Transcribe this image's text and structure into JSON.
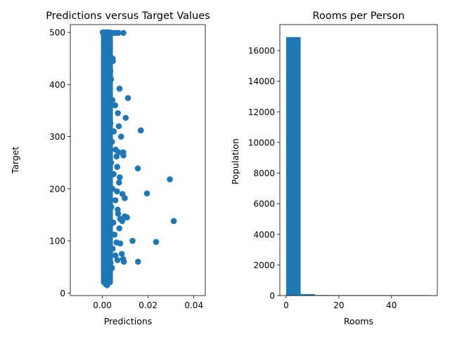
{
  "chart_data": [
    {
      "type": "scatter",
      "title": "Predictions versus Target Values",
      "xlabel": "Predictions",
      "ylabel": "Target",
      "xlim": [
        -0.014,
        0.045
      ],
      "ylim": [
        -5,
        515
      ],
      "xticks": [
        0.0,
        0.02,
        0.04
      ],
      "xtick_labels": [
        "0.00",
        "0.02",
        "0.04"
      ],
      "yticks": [
        0,
        100,
        200,
        300,
        400,
        500
      ],
      "ytick_labels": [
        "0",
        "100",
        "200",
        "300",
        "400",
        "500"
      ],
      "grid": false,
      "color": "#1f77b4",
      "points": [
        {
          "x": 0.0002,
          "y": 500
        },
        {
          "x": 0.0005,
          "y": 500
        },
        {
          "x": 0.001,
          "y": 500
        },
        {
          "x": 0.0015,
          "y": 500
        },
        {
          "x": 0.002,
          "y": 500
        },
        {
          "x": 0.0025,
          "y": 500
        },
        {
          "x": 0.003,
          "y": 500
        },
        {
          "x": 0.0035,
          "y": 499
        },
        {
          "x": 0.004,
          "y": 499
        },
        {
          "x": 0.0045,
          "y": 499
        },
        {
          "x": 0.005,
          "y": 499
        },
        {
          "x": 0.006,
          "y": 499
        },
        {
          "x": 0.007,
          "y": 499
        },
        {
          "x": 0.0092,
          "y": 499
        },
        {
          "x": 0.0012,
          "y": 490
        },
        {
          "x": 0.0022,
          "y": 485
        },
        {
          "x": 0.0008,
          "y": 475
        },
        {
          "x": 0.0018,
          "y": 470
        },
        {
          "x": 0.0028,
          "y": 465
        },
        {
          "x": 0.0013,
          "y": 455
        },
        {
          "x": 0.0045,
          "y": 450
        },
        {
          "x": 0.0046,
          "y": 445
        },
        {
          "x": 0.0024,
          "y": 440
        },
        {
          "x": 0.0016,
          "y": 430
        },
        {
          "x": 0.0035,
          "y": 425
        },
        {
          "x": 0.0011,
          "y": 415
        },
        {
          "x": 0.0038,
          "y": 410
        },
        {
          "x": 0.0021,
          "y": 400
        },
        {
          "x": 0.0075,
          "y": 392
        },
        {
          "x": 0.0014,
          "y": 388
        },
        {
          "x": 0.003,
          "y": 380
        },
        {
          "x": 0.0112,
          "y": 374
        },
        {
          "x": 0.0044,
          "y": 370
        },
        {
          "x": 0.0009,
          "y": 365
        },
        {
          "x": 0.0056,
          "y": 360
        },
        {
          "x": 0.0025,
          "y": 352
        },
        {
          "x": 0.0068,
          "y": 345
        },
        {
          "x": 0.0102,
          "y": 336
        },
        {
          "x": 0.0017,
          "y": 330
        },
        {
          "x": 0.0035,
          "y": 325
        },
        {
          "x": 0.0072,
          "y": 320
        },
        {
          "x": 0.0168,
          "y": 312
        },
        {
          "x": 0.005,
          "y": 310
        },
        {
          "x": 0.0027,
          "y": 305
        },
        {
          "x": 0.0082,
          "y": 300
        },
        {
          "x": 0.0013,
          "y": 295
        },
        {
          "x": 0.0042,
          "y": 290
        },
        {
          "x": 0.0031,
          "y": 280
        },
        {
          "x": 0.0058,
          "y": 275
        },
        {
          "x": 0.0071,
          "y": 270
        },
        {
          "x": 0.0091,
          "y": 270
        },
        {
          "x": 0.0092,
          "y": 264
        },
        {
          "x": 0.0062,
          "y": 262
        },
        {
          "x": 0.0023,
          "y": 255
        },
        {
          "x": 0.0038,
          "y": 250
        },
        {
          "x": 0.0065,
          "y": 242
        },
        {
          "x": 0.0155,
          "y": 239
        },
        {
          "x": 0.0019,
          "y": 235
        },
        {
          "x": 0.0049,
          "y": 228
        },
        {
          "x": 0.0076,
          "y": 222
        },
        {
          "x": 0.0295,
          "y": 218
        },
        {
          "x": 0.0032,
          "y": 215
        },
        {
          "x": 0.0073,
          "y": 212
        },
        {
          "x": 0.0015,
          "y": 205
        },
        {
          "x": 0.0044,
          "y": 200
        },
        {
          "x": 0.0064,
          "y": 195
        },
        {
          "x": 0.0195,
          "y": 191
        },
        {
          "x": 0.0088,
          "y": 190
        },
        {
          "x": 0.0026,
          "y": 185
        },
        {
          "x": 0.0098,
          "y": 182
        },
        {
          "x": 0.0057,
          "y": 178
        },
        {
          "x": 0.0012,
          "y": 172
        },
        {
          "x": 0.0039,
          "y": 165
        },
        {
          "x": 0.0067,
          "y": 160
        },
        {
          "x": 0.0021,
          "y": 155
        },
        {
          "x": 0.0069,
          "y": 152
        },
        {
          "x": 0.0098,
          "y": 147
        },
        {
          "x": 0.0108,
          "y": 145
        },
        {
          "x": 0.0078,
          "y": 142
        },
        {
          "x": 0.0087,
          "y": 138
        },
        {
          "x": 0.0312,
          "y": 138
        },
        {
          "x": 0.0048,
          "y": 135
        },
        {
          "x": 0.0034,
          "y": 128
        },
        {
          "x": 0.0074,
          "y": 124
        },
        {
          "x": 0.0016,
          "y": 118
        },
        {
          "x": 0.0053,
          "y": 112
        },
        {
          "x": 0.0028,
          "y": 105
        },
        {
          "x": 0.0132,
          "y": 100
        },
        {
          "x": 0.0235,
          "y": 98
        },
        {
          "x": 0.0062,
          "y": 97
        },
        {
          "x": 0.0078,
          "y": 95
        },
        {
          "x": 0.0011,
          "y": 90
        },
        {
          "x": 0.0045,
          "y": 85
        },
        {
          "x": 0.0024,
          "y": 80
        },
        {
          "x": 0.0085,
          "y": 75
        },
        {
          "x": 0.0057,
          "y": 72
        },
        {
          "x": 0.0091,
          "y": 65
        },
        {
          "x": 0.0066,
          "y": 63
        },
        {
          "x": 0.0156,
          "y": 60
        },
        {
          "x": 0.0094,
          "y": 60
        },
        {
          "x": 0.0036,
          "y": 58
        },
        {
          "x": 0.0018,
          "y": 52
        },
        {
          "x": 0.0042,
          "y": 48
        },
        {
          "x": 0.0013,
          "y": 42
        },
        {
          "x": 0.0022,
          "y": 35
        },
        {
          "x": 0.0016,
          "y": 28
        },
        {
          "x": 0.0019,
          "y": 22
        },
        {
          "x": 0.0015,
          "y": 17
        },
        {
          "x": 0.0021,
          "y": 15
        }
      ],
      "dense_band": {
        "x": [
          0.0,
          0.004
        ],
        "y": [
          15,
          500
        ]
      }
    },
    {
      "type": "bar",
      "title": "Rooms per Person",
      "xlabel": "Rooms",
      "ylabel": "Population",
      "xlim": [
        -2.4,
        57.4
      ],
      "ylim": [
        0,
        17700
      ],
      "xticks": [
        0,
        20,
        40
      ],
      "xtick_labels": [
        "0",
        "20",
        "40"
      ],
      "yticks": [
        0,
        2000,
        4000,
        6000,
        8000,
        10000,
        12000,
        14000,
        16000
      ],
      "ytick_labels": [
        "0",
        "2000",
        "4000",
        "6000",
        "8000",
        "10000",
        "12000",
        "14000",
        "16000"
      ],
      "grid": false,
      "color": "#1f77b4",
      "bins": [
        {
          "x0": 0.0,
          "x1": 5.5,
          "value": 16880
        },
        {
          "x0": 5.5,
          "x1": 11.0,
          "value": 95
        },
        {
          "x0": 11.0,
          "x1": 16.5,
          "value": 35
        },
        {
          "x0": 16.5,
          "x1": 22.0,
          "value": 6
        },
        {
          "x0": 22.0,
          "x1": 27.5,
          "value": 3
        },
        {
          "x0": 27.5,
          "x1": 33.0,
          "value": 2
        },
        {
          "x0": 33.0,
          "x1": 38.5,
          "value": 1
        },
        {
          "x0": 38.5,
          "x1": 44.0,
          "value": 1
        },
        {
          "x0": 44.0,
          "x1": 49.5,
          "value": 1
        },
        {
          "x0": 49.5,
          "x1": 55.0,
          "value": 1
        }
      ]
    }
  ]
}
